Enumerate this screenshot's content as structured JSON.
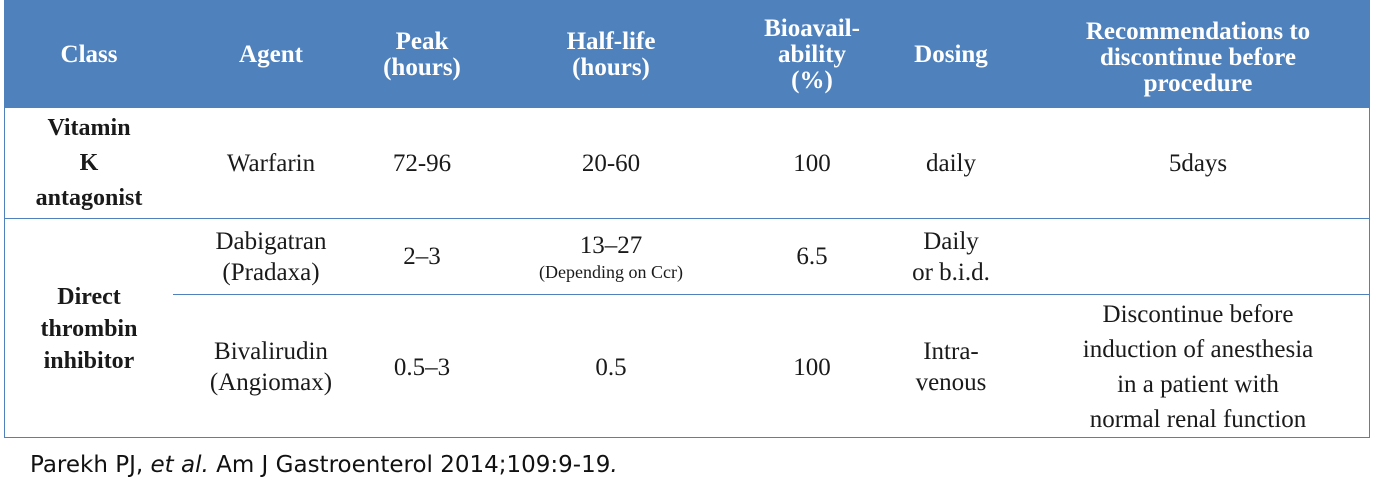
{
  "table": {
    "headers": [
      {
        "key": "class",
        "lines": [
          "Class"
        ]
      },
      {
        "key": "agent",
        "lines": [
          "Agent"
        ]
      },
      {
        "key": "peak",
        "lines": [
          "Peak",
          "(hours)"
        ]
      },
      {
        "key": "halflife",
        "lines": [
          "Half-life",
          "(hours)"
        ]
      },
      {
        "key": "bioavail",
        "lines": [
          "Bioavail-",
          "ability",
          "(%)"
        ]
      },
      {
        "key": "dosing",
        "lines": [
          "Dosing"
        ]
      },
      {
        "key": "recommendations",
        "lines": [
          "Recommendations to",
          "discontinue before",
          "procedure"
        ]
      }
    ],
    "rows": [
      {
        "class_lines": [
          "Vitamin",
          "K",
          "antagonist"
        ],
        "agent_lines": [
          "Warfarin"
        ],
        "peak": "72-96",
        "halflife": "20-60",
        "halflife_note": "",
        "bioavail": "100",
        "dosing_lines": [
          "daily"
        ],
        "recommendation_lines": [
          "5days"
        ]
      },
      {
        "class_lines": [
          "Direct",
          "thrombin",
          "inhibitor"
        ],
        "agent_lines": [
          "Dabigatran",
          "(Pradaxa)"
        ],
        "peak": "2–3",
        "halflife": "13–27",
        "halflife_note": "(Depending on Ccr)",
        "bioavail": "6.5",
        "dosing_lines": [
          "Daily",
          "or b.i.d."
        ],
        "recommendation_lines": []
      },
      {
        "agent_lines": [
          "Bivalirudin",
          "(Angiomax)"
        ],
        "peak": "0.5–3",
        "halflife": "0.5",
        "halflife_note": "",
        "bioavail": "100",
        "dosing_lines": [
          "Intra-",
          "venous"
        ],
        "recommendation_lines": [
          "Discontinue before",
          "induction of anesthesia",
          "in a patient with",
          "normal renal function"
        ]
      }
    ]
  },
  "citation": {
    "authors": "Parekh PJ, ",
    "etal": "et al.",
    "journal": " Am J Gastroenterol 2014;109:9-19",
    "trailing": "."
  }
}
